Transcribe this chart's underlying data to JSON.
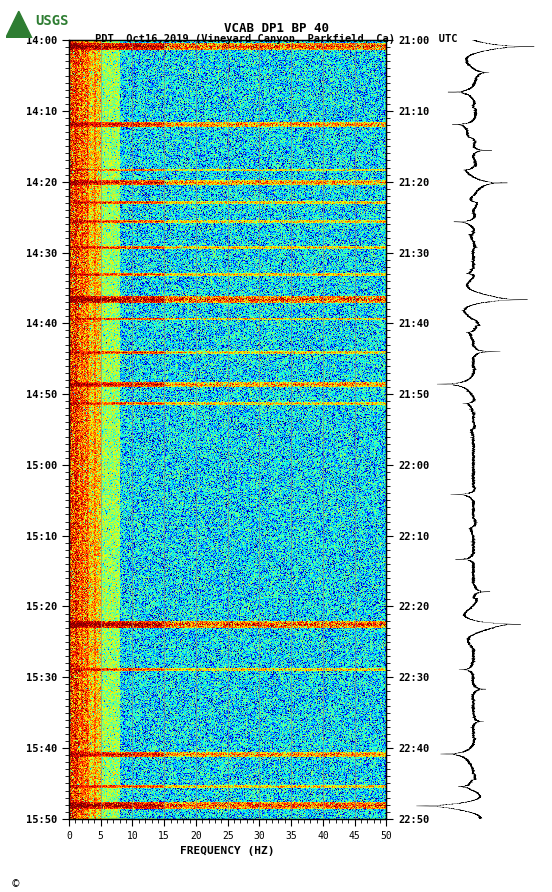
{
  "title_line1": "VCAB DP1 BP 40",
  "title_line2": "PDT  Oct16,2019 (Vineyard Canyon, Parkfield, Ca)       UTC",
  "xlabel": "FREQUENCY (HZ)",
  "ylabel_left": [
    "14:00",
    "14:10",
    "14:20",
    "14:30",
    "14:40",
    "14:50",
    "15:00",
    "15:10",
    "15:20",
    "15:30",
    "15:40",
    "15:50"
  ],
  "ylabel_right": [
    "21:00",
    "21:10",
    "21:20",
    "21:30",
    "21:40",
    "21:50",
    "22:00",
    "22:10",
    "22:20",
    "22:30",
    "22:40",
    "22:50"
  ],
  "xmin": 0,
  "xmax": 50,
  "xticks": [
    0,
    5,
    10,
    15,
    20,
    25,
    30,
    35,
    40,
    45,
    50
  ],
  "freq_vlines": [
    5,
    10,
    15,
    20,
    25,
    30,
    35,
    40,
    45
  ],
  "spectrogram_cmap": "jet",
  "time_duration_minutes": 120,
  "n_time": 800,
  "n_freq": 500,
  "event_minutes": [
    1,
    13,
    20,
    22,
    25,
    28,
    32,
    36,
    40,
    43,
    48,
    53,
    56,
    90,
    97,
    110,
    115,
    118
  ],
  "strong_events": [
    1,
    40,
    90,
    118
  ],
  "medium_events": [
    13,
    22,
    53,
    110
  ],
  "low_freq_cutoff": 5,
  "vline_color": "#888888",
  "bg_color": "white"
}
